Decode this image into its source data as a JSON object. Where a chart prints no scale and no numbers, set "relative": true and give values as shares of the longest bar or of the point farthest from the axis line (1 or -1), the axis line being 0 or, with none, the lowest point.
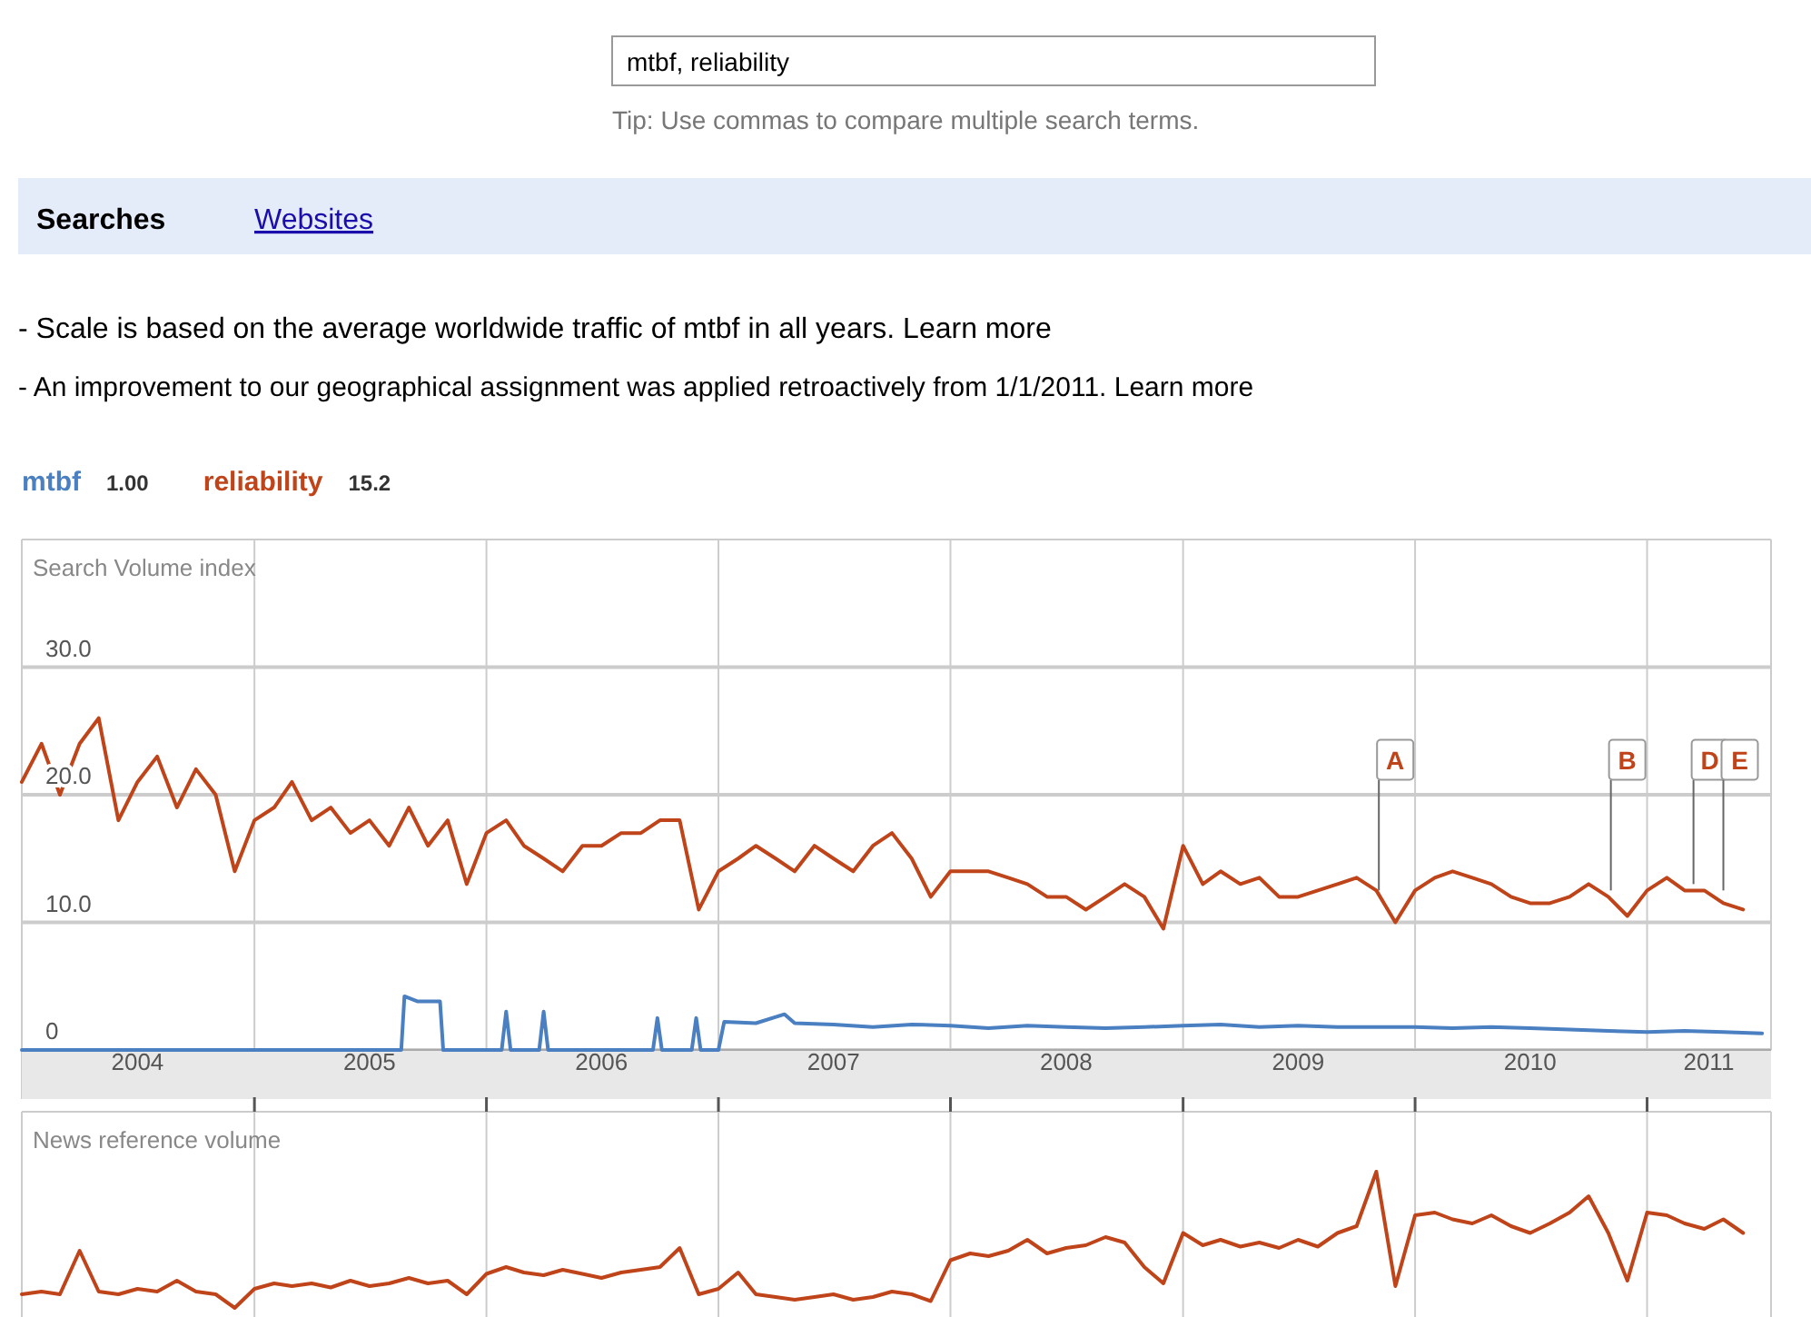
{
  "chart_data": [
    {
      "type": "line",
      "ylabel": "Search Volume index",
      "annotations": [
        "mtbf, reliability",
        "Tip: Use commas to compare multiple search terms.",
        "Searches",
        "Websites",
        "- Scale is based on the average worldwide traffic of mtbf in all years. Learn more",
        "- An improvement to our geographical assignment was applied retroactively from 1/1/2011. Learn more",
        "1.00",
        "15.2",
        {
          "text": "A",
          "x": "2009-11-05",
          "y": 12.5
        },
        {
          "text": "B",
          "x": "2010-11-05",
          "y": 12.5
        },
        {
          "text": "D",
          "x": "2011-03-15",
          "y": 13
        },
        {
          "text": "E",
          "x": "2011-05-01",
          "y": 12.5
        }
      ],
      "x": [
        "2004-01",
        "2004-02",
        "2004-03",
        "2004-04",
        "2004-05",
        "2004-06",
        "2004-07",
        "2004-08",
        "2004-09",
        "2004-10",
        "2004-11",
        "2004-12",
        "2005-01",
        "2005-02",
        "2005-03",
        "2005-04",
        "2005-05",
        "2005-06",
        "2005-07",
        "2005-08",
        "2005-09",
        "2005-10",
        "2005-11",
        "2005-12",
        "2006-01",
        "2006-02",
        "2006-03",
        "2006-04",
        "2006-05",
        "2006-06",
        "2006-07",
        "2006-08",
        "2006-09",
        "2006-10",
        "2006-11",
        "2006-12",
        "2007-01",
        "2007-02",
        "2007-03",
        "2007-04",
        "2007-05",
        "2007-06",
        "2007-07",
        "2007-08",
        "2007-09",
        "2007-10",
        "2007-11",
        "2007-12",
        "2008-01",
        "2008-02",
        "2008-03",
        "2008-04",
        "2008-05",
        "2008-06",
        "2008-07",
        "2008-08",
        "2008-09",
        "2008-10",
        "2008-11",
        "2008-12",
        "2009-01",
        "2009-02",
        "2009-03",
        "2009-04",
        "2009-05",
        "2009-06",
        "2009-07",
        "2009-08",
        "2009-09",
        "2009-10",
        "2009-11",
        "2009-12",
        "2010-01",
        "2010-02",
        "2010-03",
        "2010-04",
        "2010-05",
        "2010-06",
        "2010-07",
        "2010-08",
        "2010-09",
        "2010-10",
        "2010-11",
        "2010-12",
        "2011-01",
        "2011-02",
        "2011-03",
        "2011-04",
        "2011-05",
        "2011-06"
      ],
      "series": [
        {
          "name": "mtbf",
          "color": "#4a7fc1",
          "x": [
            "2004-01-01",
            "2005-08-20",
            "2005-08-25",
            "2005-09-15",
            "2005-10-20",
            "2005-10-25",
            "2006-01-25",
            "2006-02-01",
            "2006-02-08",
            "2006-03-25",
            "2006-04-01",
            "2006-04-08",
            "2006-09-20",
            "2006-09-27",
            "2006-10-04",
            "2006-11-20",
            "2006-11-27",
            "2006-12-04",
            "2007-01-01",
            "2007-01-10",
            "2007-03-01",
            "2007-04-15",
            "2007-05-01",
            "2007-07-01",
            "2007-09-01",
            "2007-11-01",
            "2008-01-01",
            "2008-03-01",
            "2008-05-01",
            "2008-07-01",
            "2008-09-01",
            "2008-11-01",
            "2009-01-01",
            "2009-03-01",
            "2009-05-01",
            "2009-07-01",
            "2009-09-01",
            "2009-11-01",
            "2010-01-01",
            "2010-03-01",
            "2010-05-01",
            "2010-07-01",
            "2010-09-01",
            "2010-11-01",
            "2011-01-01",
            "2011-03-01",
            "2011-05-01",
            "2011-07-01"
          ],
          "values": [
            0,
            0,
            4.2,
            3.8,
            3.8,
            0,
            0,
            3,
            0,
            0,
            3,
            0,
            0,
            2.5,
            0,
            0,
            2.5,
            0,
            0,
            2.2,
            2.1,
            2.8,
            2.1,
            2,
            1.8,
            2,
            1.9,
            1.7,
            1.9,
            1.8,
            1.7,
            1.8,
            1.9,
            2,
            1.8,
            1.9,
            1.8,
            1.8,
            1.8,
            1.7,
            1.8,
            1.7,
            1.6,
            1.5,
            1.4,
            1.5,
            1.4,
            1.3
          ]
        },
        {
          "name": "reliability",
          "color": "#c0441a",
          "values": [
            21,
            24,
            20,
            24,
            26,
            18,
            21,
            23,
            19,
            22,
            20,
            14,
            18,
            19,
            21,
            18,
            19,
            17,
            18,
            16,
            19,
            16,
            18,
            13,
            17,
            18,
            16,
            15,
            14,
            16,
            16,
            17,
            17,
            18,
            18,
            11,
            14,
            15,
            16,
            15,
            14,
            16,
            15,
            14,
            16,
            17,
            15,
            12,
            14,
            14,
            14,
            13.5,
            13,
            12,
            12,
            11,
            12,
            13,
            12,
            9.5,
            16,
            13,
            14,
            13,
            13.5,
            12,
            12,
            12.5,
            13,
            13.5,
            12.5,
            10,
            12.5,
            13.5,
            14,
            13.5,
            13,
            12,
            11.5,
            11.5,
            12,
            13,
            12,
            10.5,
            12.5,
            13.5,
            12.5,
            12.5,
            11.5,
            11
          ]
        }
      ],
      "xlim": [
        "2004-01-01",
        "2011-07-15"
      ],
      "xticks": [
        {
          "value": "2004-01-01",
          "label": null
        },
        {
          "value": "2004-07-01",
          "label": "2004"
        },
        {
          "value": "2005-01-01",
          "label": null
        },
        {
          "value": "2005-07-01",
          "label": "2005"
        },
        {
          "value": "2006-01-01",
          "label": null
        },
        {
          "value": "2006-07-01",
          "label": "2006"
        },
        {
          "value": "2007-01-01",
          "label": null
        },
        {
          "value": "2007-07-01",
          "label": "2007"
        },
        {
          "value": "2008-01-01",
          "label": null
        },
        {
          "value": "2008-07-01",
          "label": "2008"
        },
        {
          "value": "2009-01-01",
          "label": null
        },
        {
          "value": "2009-07-01",
          "label": "2009"
        },
        {
          "value": "2010-01-01",
          "label": null
        },
        {
          "value": "2010-07-01",
          "label": "2010"
        },
        {
          "value": "2011-01-01",
          "label": null
        },
        {
          "value": "2011-04-08",
          "label": "2011"
        }
      ],
      "ylim": [
        0,
        40
      ],
      "yticks": [
        0,
        {
          "value": 10,
          "label": "10.0"
        },
        {
          "value": 20,
          "label": "20.0"
        },
        {
          "value": 30,
          "label": "30.0"
        }
      ],
      "grid": true,
      "legend": "top left"
    },
    {
      "type": "line",
      "ylabel": "News reference volume",
      "relative": true,
      "x": [
        "2004-01",
        "2004-02",
        "2004-03",
        "2004-04",
        "2004-05",
        "2004-06",
        "2004-07",
        "2004-08",
        "2004-09",
        "2004-10",
        "2004-11",
        "2004-12",
        "2005-01",
        "2005-02",
        "2005-03",
        "2005-04",
        "2005-05",
        "2005-06",
        "2005-07",
        "2005-08",
        "2005-09",
        "2005-10",
        "2005-11",
        "2005-12",
        "2006-01",
        "2006-02",
        "2006-03",
        "2006-04",
        "2006-05",
        "2006-06",
        "2006-07",
        "2006-08",
        "2006-09",
        "2006-10",
        "2006-11",
        "2006-12",
        "2007-01",
        "2007-02",
        "2007-03",
        "2007-04",
        "2007-05",
        "2007-06",
        "2007-07",
        "2007-08",
        "2007-09",
        "2007-10",
        "2007-11",
        "2007-12",
        "2008-01",
        "2008-02",
        "2008-03",
        "2008-04",
        "2008-05",
        "2008-06",
        "2008-07",
        "2008-08",
        "2008-09",
        "2008-10",
        "2008-11",
        "2008-12",
        "2009-01",
        "2009-02",
        "2009-03",
        "2009-04",
        "2009-05",
        "2009-06",
        "2009-07",
        "2009-08",
        "2009-09",
        "2009-10",
        "2009-11",
        "2009-12",
        "2010-01",
        "2010-02",
        "2010-03",
        "2010-04",
        "2010-05",
        "2010-06",
        "2010-07",
        "2010-08",
        "2010-09",
        "2010-10",
        "2010-11",
        "2010-12",
        "2011-01",
        "2011-02",
        "2011-03",
        "2011-04",
        "2011-05",
        "2011-06"
      ],
      "series": [
        {
          "color": "#c0441a",
          "values": [
            0.1,
            0.12,
            0.1,
            0.42,
            0.12,
            0.1,
            0.14,
            0.12,
            0.2,
            0.12,
            0.1,
            0,
            0.14,
            0.18,
            0.16,
            0.18,
            0.15,
            0.2,
            0.16,
            0.18,
            0.22,
            0.18,
            0.2,
            0.1,
            0.25,
            0.3,
            0.26,
            0.24,
            0.28,
            0.25,
            0.22,
            0.26,
            0.28,
            0.3,
            0.44,
            0.1,
            0.14,
            0.26,
            0.1,
            0.08,
            0.06,
            0.08,
            0.1,
            0.06,
            0.08,
            0.12,
            0.1,
            0.05,
            0.35,
            0.4,
            0.38,
            0.42,
            0.5,
            0.4,
            0.44,
            0.46,
            0.52,
            0.48,
            0.3,
            0.18,
            0.55,
            0.46,
            0.5,
            0.45,
            0.48,
            0.44,
            0.5,
            0.45,
            0.55,
            0.6,
            1,
            0.16,
            0.68,
            0.7,
            0.65,
            0.62,
            0.68,
            0.6,
            0.55,
            0.62,
            0.7,
            0.82,
            0.55,
            0.2,
            0.7,
            0.68,
            0.62,
            0.58,
            0.65,
            0.55
          ]
        }
      ],
      "xlim": [
        "2004-01-01",
        "2011-07-15"
      ],
      "xticks": [
        {
          "value": "2005-01-01",
          "label": null
        },
        {
          "value": "2006-01-01",
          "label": null
        },
        {
          "value": "2007-01-01",
          "label": null
        },
        {
          "value": "2008-01-01",
          "label": null
        },
        {
          "value": "2009-01-01",
          "label": null
        },
        {
          "value": "2010-01-01",
          "label": null
        },
        {
          "value": "2011-01-01",
          "label": null
        }
      ],
      "grid": "x",
      "tick_labels": false
    }
  ]
}
